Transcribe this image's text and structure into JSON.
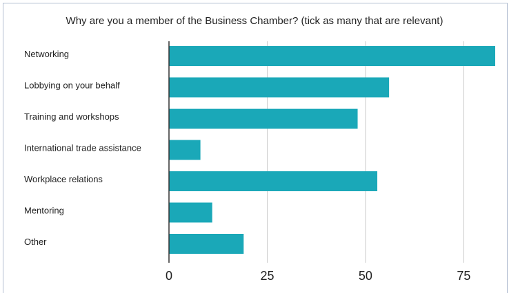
{
  "colors": {
    "bar": "#1aa8b8",
    "grid": "#cccccc",
    "axis": "#333333"
  },
  "chart_data": {
    "type": "bar",
    "orientation": "horizontal",
    "title": "Why are you a member of the Business Chamber? (tick as many that are relevant)",
    "categories": [
      "Networking",
      "Lobbying on your behalf",
      "Training and workshops",
      "International trade assistance",
      "Workplace relations",
      "Mentoring",
      "Other"
    ],
    "values": [
      83,
      56,
      48,
      8,
      53,
      11,
      19
    ],
    "xlim": [
      0,
      83
    ],
    "xticks": [
      0,
      25,
      50,
      75
    ],
    "xtick_labels": [
      "0",
      "25",
      "50",
      "75"
    ],
    "grid": true,
    "legend": "none"
  }
}
